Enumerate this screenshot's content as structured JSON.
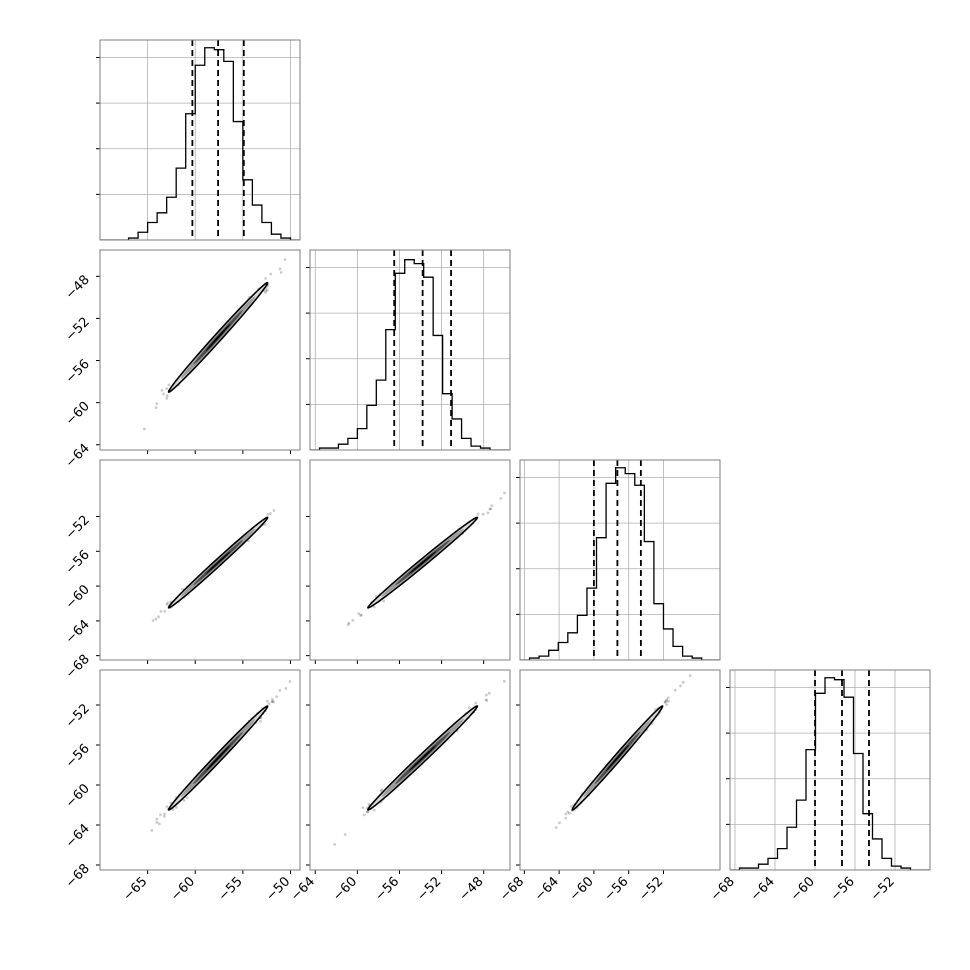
{
  "chart_data": {
    "type": "corner",
    "n_params": 4,
    "grid": true,
    "colors": {
      "line": "#000000",
      "grid": "#b0b0b0",
      "frame": "#7f7f7f",
      "point": "#333333"
    },
    "ranges": [
      {
        "min": -70,
        "max": -49
      },
      {
        "min": -64.5,
        "max": -45.5
      },
      {
        "min": -68.5,
        "max": -45.5
      },
      {
        "min": -68.5,
        "max": -48.5
      }
    ],
    "x_ticks": [
      {
        "values": [
          -65,
          -60,
          -55,
          -50
        ],
        "labels": [
          "−65",
          "−60",
          "−55",
          "−50"
        ]
      },
      {
        "values": [
          -64,
          -60,
          -56,
          -52,
          -48
        ],
        "labels": [
          "−64",
          "−60",
          "−56",
          "−52",
          "−48"
        ]
      },
      {
        "values": [
          -68,
          -64,
          -60,
          -56,
          -52
        ],
        "labels": [
          "−68",
          "−64",
          "−60",
          "−56",
          "−52"
        ]
      },
      {
        "values": [
          -68,
          -64,
          -60,
          -56,
          -52
        ],
        "labels": [
          "−68",
          "−64",
          "−60",
          "−56",
          "−52"
        ]
      }
    ],
    "y_ticks": [
      null,
      {
        "values": [
          -48,
          -52,
          -56,
          -60,
          -64
        ],
        "labels": [
          "−48",
          "−52",
          "−56",
          "−60",
          "−64"
        ]
      },
      {
        "values": [
          -52,
          -56,
          -60,
          -64,
          -68
        ],
        "labels": [
          "−52",
          "−56",
          "−60",
          "−64",
          "−68"
        ]
      },
      {
        "values": [
          -52,
          -56,
          -60,
          -64,
          -68
        ],
        "labels": [
          "−52",
          "−56",
          "−60",
          "−64",
          "−68"
        ]
      }
    ],
    "histograms": [
      {
        "bin_width": 1.0,
        "bin_edges_start": -70,
        "counts": [
          0,
          0,
          0,
          0.01,
          0.04,
          0.09,
          0.14,
          0.22,
          0.37,
          0.65,
          0.9,
          0.99,
          0.98,
          0.92,
          0.61,
          0.31,
          0.18,
          0.09,
          0.03,
          0.01,
          0
        ],
        "quantiles": [
          -60.3,
          -57.6,
          -54.9
        ],
        "count_max": 1.03
      },
      {
        "bin_width": 0.9,
        "bin_edges_start": -64.5,
        "counts": [
          0,
          0.01,
          0.01,
          0.03,
          0.06,
          0.11,
          0.23,
          0.36,
          0.62,
          0.91,
          0.98,
          0.96,
          0.89,
          0.59,
          0.29,
          0.16,
          0.06,
          0.02,
          0.01,
          0,
          0
        ],
        "quantiles": [
          -56.5,
          -53.8,
          -51.1
        ],
        "count_max": 1.03
      },
      {
        "bin_width": 1.1,
        "bin_edges_start": -68.5,
        "counts": [
          0,
          0.01,
          0.02,
          0.05,
          0.09,
          0.14,
          0.23,
          0.37,
          0.63,
          0.91,
          0.99,
          0.96,
          0.9,
          0.61,
          0.29,
          0.16,
          0.07,
          0.02,
          0.01,
          0,
          0
        ],
        "quantiles": [
          -60.0,
          -57.3,
          -54.6
        ],
        "count_max": 1.03
      },
      {
        "bin_width": 0.95,
        "bin_edges_start": -68.5,
        "counts": [
          0,
          0.01,
          0.01,
          0.03,
          0.06,
          0.11,
          0.22,
          0.36,
          0.62,
          0.91,
          0.99,
          0.98,
          0.89,
          0.6,
          0.29,
          0.16,
          0.06,
          0.02,
          0.01,
          0,
          0
        ],
        "quantiles": [
          -60.0,
          -57.3,
          -54.6
        ],
        "count_max": 1.03
      }
    ],
    "contour": {
      "mean": [
        -57.6,
        -53.8,
        -57.3,
        -57.3
      ],
      "sigma": [
        2.6,
        2.6,
        2.6,
        2.6
      ],
      "rho": 0.995,
      "levels": [
        0.5,
        1.0,
        1.5,
        2.0
      ]
    }
  }
}
